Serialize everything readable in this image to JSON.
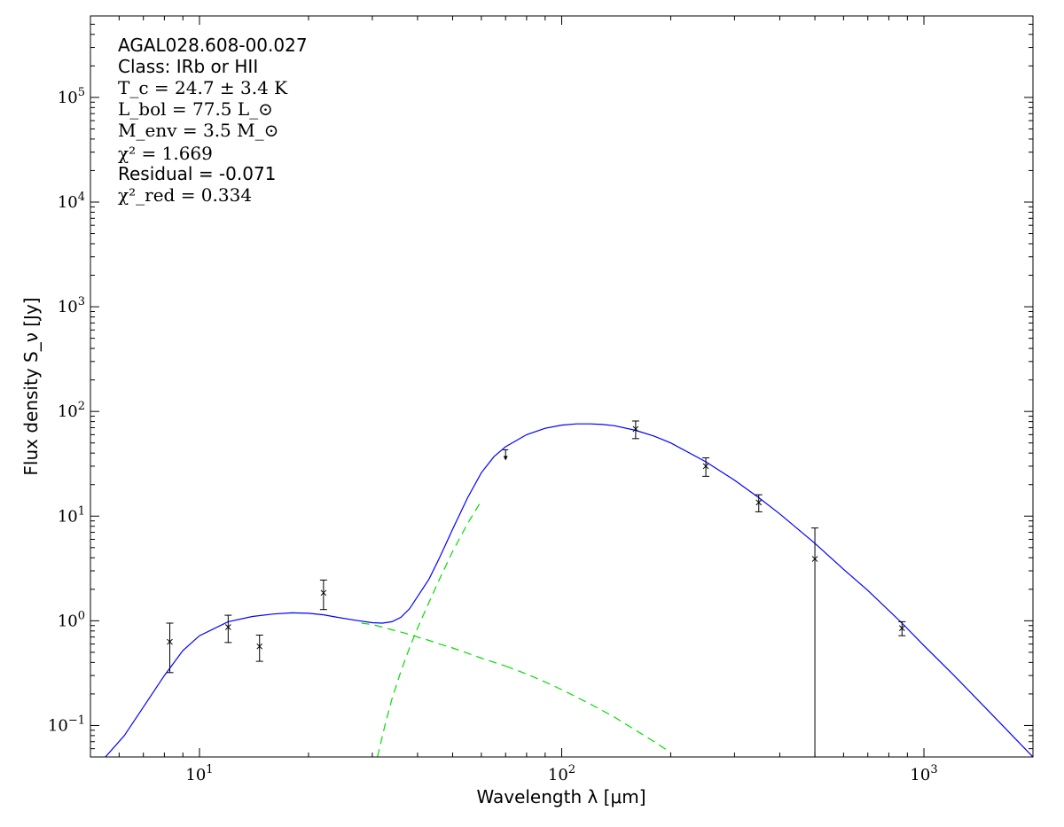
{
  "chart_data": {
    "type": "scatter",
    "title": "",
    "xlabel": "Wavelength λ [μm]",
    "ylabel": "Flux density S_ν [Jy]",
    "x_scale": "log",
    "y_scale": "log",
    "xlim": [
      5,
      2000
    ],
    "ylim": [
      0.05,
      600000
    ],
    "grid": false,
    "x_ticks": [
      {
        "value": 10,
        "base": "10",
        "exp": "1"
      },
      {
        "value": 100,
        "base": "10",
        "exp": "2"
      },
      {
        "value": 1000,
        "base": "10",
        "exp": "3"
      }
    ],
    "y_ticks": [
      {
        "value": 0.1,
        "base": "10",
        "exp": "−1"
      },
      {
        "value": 1,
        "base": "10",
        "exp": "0"
      },
      {
        "value": 10,
        "base": "10",
        "exp": "1"
      },
      {
        "value": 100,
        "base": "10",
        "exp": "2"
      },
      {
        "value": 1000,
        "base": "10",
        "exp": "3"
      },
      {
        "value": 10000,
        "base": "10",
        "exp": "4"
      },
      {
        "value": 100000,
        "base": "10",
        "exp": "5"
      }
    ],
    "annotations": {
      "source": "AGAL028.608-00.027",
      "class": "Class: IRb or HII",
      "tc": "T_c = 24.7 ± 3.4 K",
      "lbol": "L_bol = 77.5 L_⊙",
      "menv": "M_env = 3.5 M_⊙",
      "chi2": "χ² = 1.669",
      "residual": "Residual = -0.071",
      "chi2red": "χ²_red = 0.334"
    },
    "data_points": [
      {
        "x": 8.28,
        "y": 0.63,
        "err_lo": 0.32,
        "err_hi": 0.95
      },
      {
        "x": 12.0,
        "y": 0.87,
        "err_lo": 0.62,
        "err_hi": 1.13
      },
      {
        "x": 14.65,
        "y": 0.57,
        "err_lo": 0.41,
        "err_hi": 0.73
      },
      {
        "x": 22.0,
        "y": 1.85,
        "err_lo": 1.28,
        "err_hi": 2.45
      },
      {
        "x": 160,
        "y": 68,
        "err_lo": 55,
        "err_hi": 81
      },
      {
        "x": 250,
        "y": 30,
        "err_lo": 24,
        "err_hi": 36
      },
      {
        "x": 350,
        "y": 13.5,
        "err_lo": 11,
        "err_hi": 16
      },
      {
        "x": 500,
        "y": 3.9,
        "err_lo": 0.05,
        "err_hi": 7.7
      },
      {
        "x": 870,
        "y": 0.85,
        "err_lo": 0.72,
        "err_hi": 0.98
      }
    ],
    "upper_limits": [
      {
        "x": 70,
        "y": 43
      }
    ],
    "series": [
      {
        "style": "solid",
        "color": "#0000ff",
        "x": [
          5.5,
          6.2,
          7.0,
          8.0,
          9.0,
          10.0,
          12.0,
          14.0,
          16.0,
          18.0,
          20.0,
          22.0,
          24.0,
          27.0,
          30.0,
          32.0,
          34.0,
          36.0,
          38.0,
          40.0,
          43.0,
          46.0,
          50.0,
          55.0,
          60.0,
          65.0,
          70.0,
          80.0,
          90.0,
          100.0,
          110.0,
          120.0,
          130.0,
          140.0,
          160.0,
          180.0,
          200.0,
          250.0,
          300.0,
          350.0,
          400.0,
          500.0,
          600.0,
          700.0,
          870.0,
          1000.0,
          1200.0,
          1500.0,
          2000.0
        ],
        "y": [
          0.05,
          0.08,
          0.15,
          0.3,
          0.52,
          0.72,
          0.98,
          1.1,
          1.16,
          1.19,
          1.18,
          1.14,
          1.08,
          1.01,
          0.96,
          0.95,
          0.98,
          1.08,
          1.3,
          1.7,
          2.5,
          4.0,
          7.5,
          15.0,
          26.0,
          37.0,
          46.0,
          60.0,
          69.0,
          74.0,
          76.0,
          76.0,
          75.0,
          73.0,
          66.0,
          58.0,
          50.0,
          33.0,
          22.0,
          15.0,
          10.5,
          5.5,
          3.1,
          1.95,
          0.95,
          0.58,
          0.31,
          0.14,
          0.05
        ]
      },
      {
        "style": "dashed",
        "color": "#00dd00",
        "x": [
          28.0,
          30.0,
          32.0,
          34.0,
          36.0,
          38.0,
          40.0,
          43.0,
          46.0,
          50.0,
          55.0,
          60.0,
          70.0
        ],
        "y": [
          0.95,
          0.92,
          0.87,
          0.82,
          0.78,
          0.74,
          0.7,
          0.65,
          0.6,
          0.55,
          0.49,
          0.44,
          0.37
        ]
      },
      {
        "style": "dashed",
        "color": "#00dd00",
        "x": [
          70.0,
          80.0,
          90.0,
          100.0,
          120.0,
          140.0,
          160.0,
          180.0,
          200.0
        ],
        "y": [
          0.37,
          0.31,
          0.26,
          0.22,
          0.16,
          0.12,
          0.09,
          0.07,
          0.055
        ]
      },
      {
        "style": "dashed",
        "color": "#00dd00",
        "x": [
          31.0,
          32.5,
          34.0,
          36.0,
          38.0,
          40.0,
          43.0,
          46.0,
          50.0,
          55.0,
          60.0
        ],
        "y": [
          0.05,
          0.1,
          0.18,
          0.33,
          0.55,
          0.85,
          1.5,
          2.5,
          4.6,
          8.5,
          14.0
        ]
      }
    ]
  }
}
